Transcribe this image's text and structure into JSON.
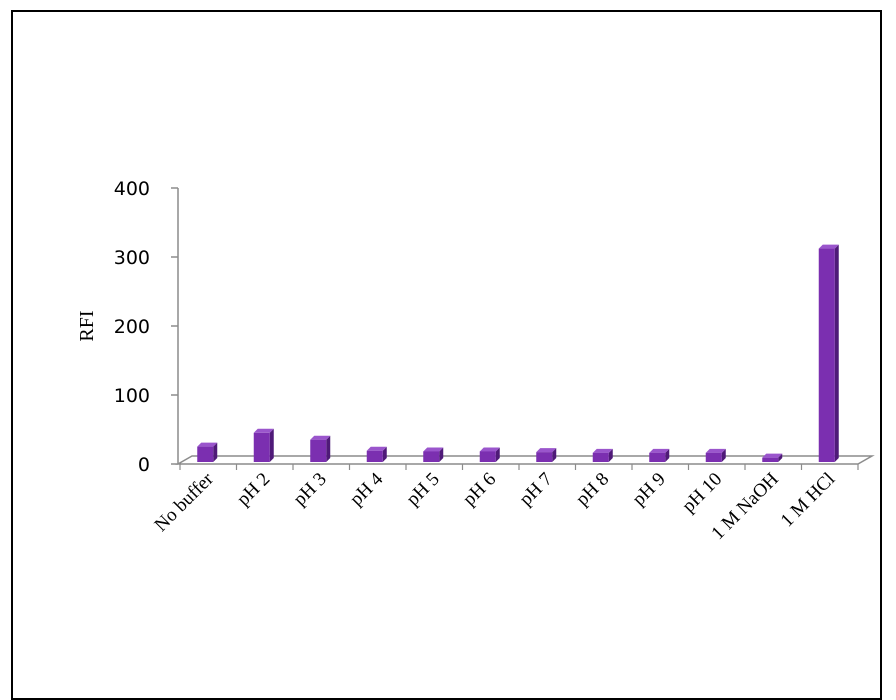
{
  "chart_data": {
    "type": "bar",
    "categories": [
      "No buffer",
      "pH 2",
      "pH 3",
      "pH 4",
      "pH 5",
      "pH 6",
      "pH 7",
      "pH 8",
      "pH 9",
      "pH 10",
      "1 M  NaOH",
      "1 M HCl"
    ],
    "values": [
      31,
      51,
      41,
      25,
      24,
      24,
      23,
      22,
      22,
      22,
      15,
      318
    ],
    "ylabel": "RFI",
    "xlabel": "",
    "title": "",
    "ylim": [
      0,
      400
    ],
    "yticks": [
      0,
      100,
      200,
      300,
      400
    ],
    "grid": false,
    "legend": "none",
    "colors": {
      "bar_front": "#7b2fb0",
      "bar_side": "#4f1a78",
      "bar_top": "#9a55cc",
      "axis": "#8c8c8c"
    }
  }
}
